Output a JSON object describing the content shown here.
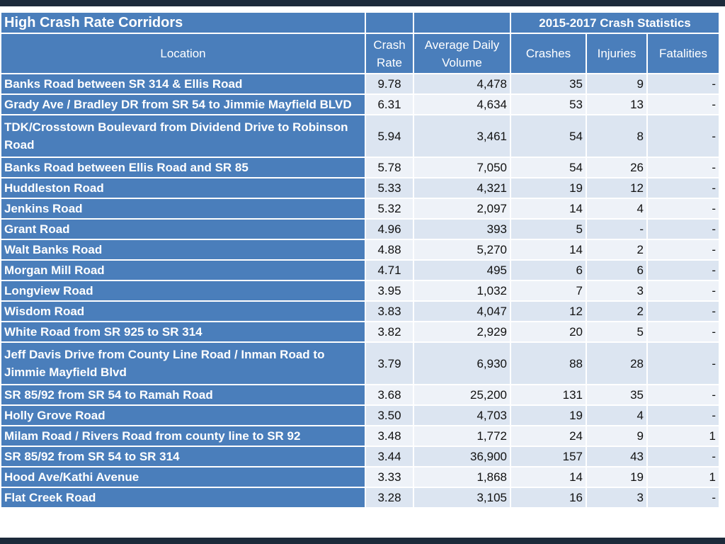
{
  "title": "High Crash Rate Corridors",
  "stats_header": "2015-2017 Crash Statistics",
  "columns": {
    "location": "Location",
    "crash_rate_l1": "Crash",
    "crash_rate_l2": "Rate",
    "adv_l1": "Average Daily",
    "adv_l2": "Volume",
    "crashes": "Crashes",
    "injuries": "Injuries",
    "fatalities": "Fatalities"
  },
  "rows": [
    {
      "location": "Banks Road between SR 314 & Ellis Road",
      "rate": "9.78",
      "volume": "4,478",
      "crashes": "35",
      "injuries": "9",
      "fatalities": "-"
    },
    {
      "location": "Grady Ave / Bradley DR from SR 54 to Jimmie Mayfield BLVD",
      "rate": "6.31",
      "volume": "4,634",
      "crashes": "53",
      "injuries": "13",
      "fatalities": "-"
    },
    {
      "location": "TDK/Crosstown Boulevard from Dividend Drive to Robinson Road",
      "rate": "5.94",
      "volume": "3,461",
      "crashes": "54",
      "injuries": "8",
      "fatalities": "-"
    },
    {
      "location": "Banks Road between Ellis Road and SR 85",
      "rate": "5.78",
      "volume": "7,050",
      "crashes": "54",
      "injuries": "26",
      "fatalities": "-"
    },
    {
      "location": "Huddleston Road",
      "rate": "5.33",
      "volume": "4,321",
      "crashes": "19",
      "injuries": "12",
      "fatalities": "-"
    },
    {
      "location": "Jenkins Road",
      "rate": "5.32",
      "volume": "2,097",
      "crashes": "14",
      "injuries": "4",
      "fatalities": "-"
    },
    {
      "location": "Grant Road",
      "rate": "4.96",
      "volume": "393",
      "crashes": "5",
      "injuries": "-",
      "fatalities": "-"
    },
    {
      "location": "Walt Banks Road",
      "rate": "4.88",
      "volume": "5,270",
      "crashes": "14",
      "injuries": "2",
      "fatalities": "-"
    },
    {
      "location": "Morgan Mill Road",
      "rate": "4.71",
      "volume": "495",
      "crashes": "6",
      "injuries": "6",
      "fatalities": "-"
    },
    {
      "location": "Longview Road",
      "rate": "3.95",
      "volume": "1,032",
      "crashes": "7",
      "injuries": "3",
      "fatalities": "-"
    },
    {
      "location": "Wisdom Road",
      "rate": "3.83",
      "volume": "4,047",
      "crashes": "12",
      "injuries": "2",
      "fatalities": "-"
    },
    {
      "location": "White Road from SR 925 to SR 314",
      "rate": "3.82",
      "volume": "2,929",
      "crashes": "20",
      "injuries": "5",
      "fatalities": "-"
    },
    {
      "location": "Jeff Davis Drive from County Line Road / Inman Road to Jimmie Mayfield Blvd",
      "rate": "3.79",
      "volume": "6,930",
      "crashes": "88",
      "injuries": "28",
      "fatalities": "-"
    },
    {
      "location": "SR 85/92 from SR 54 to Ramah Road",
      "rate": "3.68",
      "volume": "25,200",
      "crashes": "131",
      "injuries": "35",
      "fatalities": "-"
    },
    {
      "location": "Holly Grove Road",
      "rate": "3.50",
      "volume": "4,703",
      "crashes": "19",
      "injuries": "4",
      "fatalities": "-"
    },
    {
      "location": "Milam Road / Rivers Road from county line to SR 92",
      "rate": "3.48",
      "volume": "1,772",
      "crashes": "24",
      "injuries": "9",
      "fatalities": "1"
    },
    {
      "location": "SR 85/92 from SR 54 to SR 314",
      "rate": "3.44",
      "volume": "36,900",
      "crashes": "157",
      "injuries": "43",
      "fatalities": "-"
    },
    {
      "location": "Hood Ave/Kathi Avenue",
      "rate": "3.33",
      "volume": "1,868",
      "crashes": "14",
      "injuries": "19",
      "fatalities": "1"
    },
    {
      "location": "Flat Creek Road",
      "rate": "3.28",
      "volume": "3,105",
      "crashes": "16",
      "injuries": "3",
      "fatalities": "-"
    }
  ]
}
